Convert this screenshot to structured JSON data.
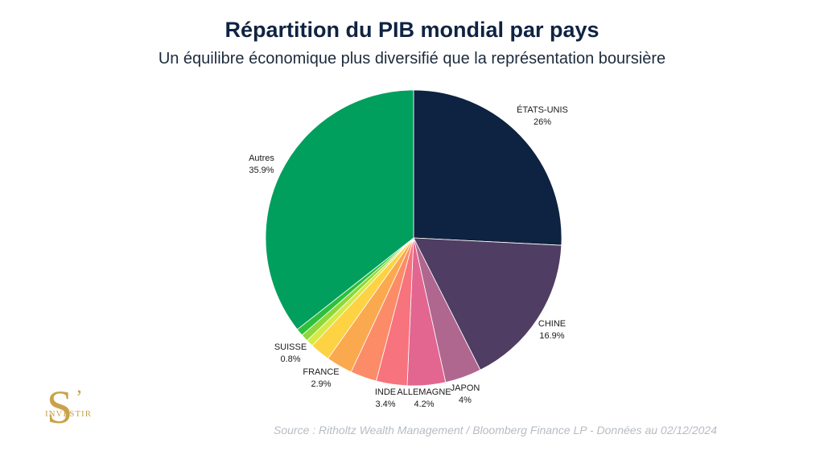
{
  "header": {
    "title": "Répartition du PIB mondial par pays",
    "subtitle": "Un équilibre économique plus diversifié que la représentation boursière"
  },
  "footer": {
    "source": "Source : Ritholtz Wealth Management / Bloomberg Finance LP - Données au 02/12/2024"
  },
  "logo": {
    "letter": "S",
    "apostrophe": "’",
    "word": "INVESTIR"
  },
  "chart_data": {
    "type": "pie",
    "title": "Répartition du PIB mondial par pays",
    "subtitle": "Un équilibre économique plus diversifié que la représentation boursière",
    "start": "12 o'clock",
    "direction": "clockwise",
    "slices": [
      {
        "name": "ÉTATS-UNIS",
        "label": "26%",
        "value": 26,
        "color": "#0e2241",
        "show_label": true
      },
      {
        "name": "CHINE",
        "label": "16.9%",
        "value": 16.9,
        "color": "#4f3d63",
        "show_label": true
      },
      {
        "name": "JAPON",
        "label": "4%",
        "value": 4,
        "color": "#b0678f",
        "show_label": true
      },
      {
        "name": "ALLEMAGNE",
        "label": "4.2%",
        "value": 4.2,
        "color": "#e26690",
        "show_label": true
      },
      {
        "name": "INDE",
        "label": "3.4%",
        "value": 3.4,
        "color": "#f7737d",
        "show_label": true
      },
      {
        "name": "",
        "label": "",
        "value": 2.9,
        "color": "#fb8c67",
        "show_label": false
      },
      {
        "name": "FRANCE",
        "label": "2.9%",
        "value": 2.9,
        "color": "#fba94e",
        "show_label": true
      },
      {
        "name": "",
        "label": "",
        "value": 2.2,
        "color": "#fdd243",
        "show_label": false
      },
      {
        "name": "SUISSE",
        "label": "0.8%",
        "value": 0.8,
        "color": "#d6ea45",
        "show_label": true
      },
      {
        "name": "",
        "label": "",
        "value": 0.8,
        "color": "#8ed839",
        "show_label": false
      },
      {
        "name": "",
        "label": "",
        "value": 0.8,
        "color": "#2ebf3c",
        "show_label": false
      },
      {
        "name": "Autres",
        "label": "35.9%",
        "value": 35.9,
        "color": "#009f5d",
        "show_label": true
      }
    ]
  }
}
